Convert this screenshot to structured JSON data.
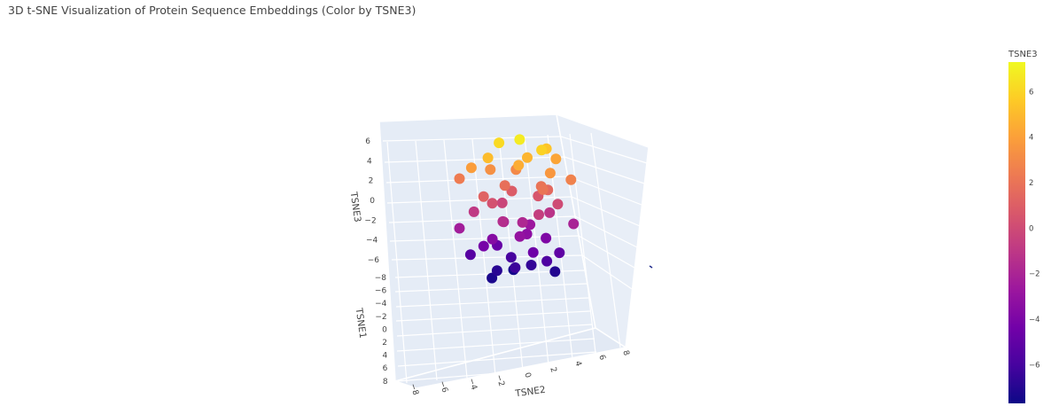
{
  "chart_data": {
    "type": "scatter",
    "title": "3D t-SNE Visualization of Protein Sequence Embeddings (Color by TSNE3)",
    "xlabel": "TSNE2",
    "ylabel": "TSNE1",
    "zlabel": "TSNE3",
    "xlim": [
      -9,
      9
    ],
    "ylim": [
      -9,
      9
    ],
    "zlim": [
      -8,
      7
    ],
    "x_ticks": [
      "−8",
      "−6",
      "−4",
      "−2",
      "0",
      "2",
      "4",
      "6",
      "8"
    ],
    "y_ticks": [
      "−8",
      "−6",
      "−4",
      "−2",
      "0",
      "2",
      "4",
      "6",
      "8"
    ],
    "z_ticks": [
      "−6",
      "−4",
      "−2",
      "0",
      "2",
      "4",
      "6"
    ],
    "colorscale": "plasma",
    "colorbar": {
      "title": "TSNE3",
      "range": [
        -7.7,
        7.3
      ],
      "ticks": [
        "6",
        "4",
        "2",
        "0",
        "−2",
        "−4",
        "−6"
      ]
    },
    "grid": true,
    "legend": "none",
    "series": [
      {
        "x": [
          0.2,
          -1.5,
          2.1,
          3.4,
          -3.2,
          1.1,
          -0.4,
          4.5,
          -4.6,
          2.8,
          -2.2,
          0.7,
          5.1,
          -5.3,
          1.8,
          -1.0,
          3.0,
          -3.8,
          0.1,
          2.4,
          -2.7,
          4.0,
          -0.9,
          1.5,
          -4.1,
          3.6,
          -1.8,
          0.4,
          5.6,
          -5.8,
          2.0,
          -0.2,
          1.2,
          -2.5,
          3.3,
          -3.5,
          0.9,
          -1.3,
          4.2,
          -4.4,
          2.6,
          0.0,
          -0.6,
          1.7,
          -2.0,
          3.8,
          -3.0,
          0.5,
          2.2,
          -1.1
        ],
        "y": [
          0.5,
          -1.2,
          1.8,
          -2.5,
          2.0,
          -0.3,
          3.1,
          -3.4,
          0.8,
          2.6,
          -2.0,
          -4.0,
          1.2,
          -1.6,
          4.1,
          -0.8,
          0.3,
          2.9,
          -3.0,
          -1.5,
          1.6,
          0.2,
          -2.7,
          3.5,
          -0.5,
          -1.9,
          2.3,
          0.9,
          -0.1,
          1.0,
          -3.6,
          2.7,
          -1.0,
          0.6,
          -2.2,
          1.4,
          3.8,
          -3.2,
          0.0,
          -0.7,
          1.9,
          -2.8,
          2.4,
          -1.4,
          0.4,
          -0.2,
          3.0,
          -4.2,
          1.1,
          -0.9
        ],
        "z": [
          6.8,
          6.2,
          5.9,
          5.4,
          5.1,
          4.8,
          4.5,
          4.2,
          3.9,
          3.6,
          3.3,
          3.0,
          2.7,
          2.4,
          2.1,
          1.8,
          1.5,
          1.2,
          0.9,
          0.6,
          0.3,
          0.0,
          -0.3,
          -0.6,
          -0.9,
          -1.2,
          -1.5,
          -1.8,
          -2.1,
          -2.4,
          -2.7,
          -3.0,
          -3.3,
          -3.6,
          -3.9,
          -4.2,
          -4.5,
          -4.8,
          -5.1,
          -5.4,
          -5.7,
          -6.0,
          -6.3,
          -6.6,
          -6.9,
          -7.1,
          -7.3,
          -7.5,
          2.0,
          -2.0
        ]
      }
    ]
  }
}
